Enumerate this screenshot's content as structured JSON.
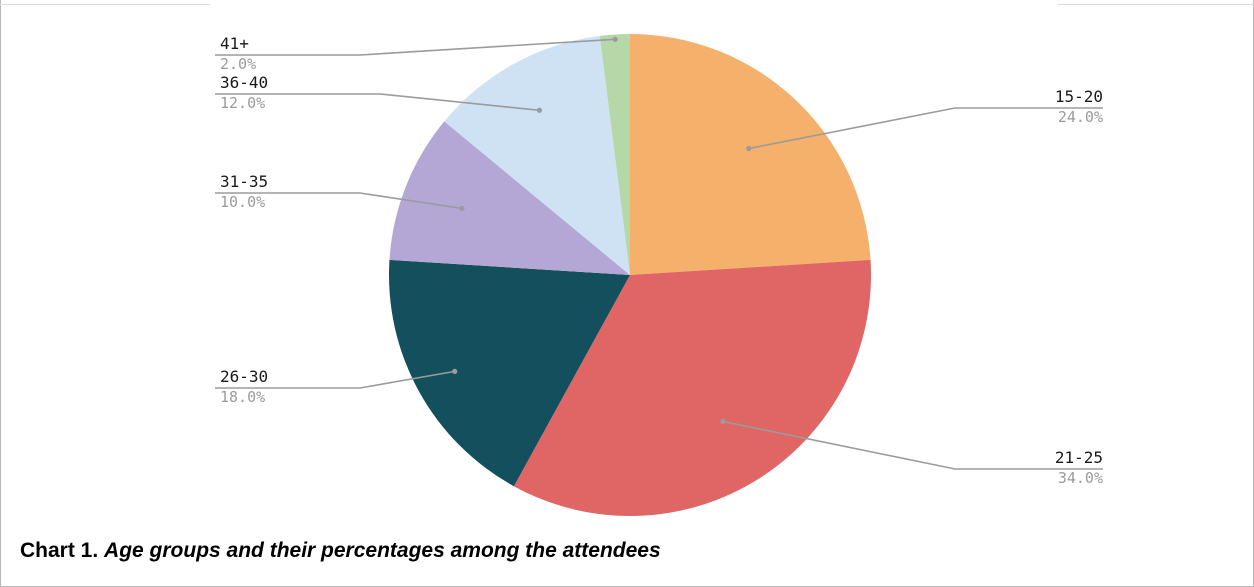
{
  "chart_data": {
    "type": "pie",
    "categories": [
      "15-20",
      "21-25",
      "26-30",
      "31-35",
      "36-40",
      "41+"
    ],
    "values": [
      24.0,
      34.0,
      18.0,
      10.0,
      12.0,
      2.0
    ],
    "value_labels": [
      "24.0%",
      "34.0%",
      "18.0%",
      "10.0%",
      "12.0%",
      "2.0%"
    ],
    "colors": [
      "#f5b06b",
      "#e06666",
      "#134f5c",
      "#b4a7d6",
      "#cfe2f3",
      "#b6d7a8"
    ],
    "start": "12 o'clock",
    "direction": "clockwise",
    "legend": "none"
  },
  "caption": {
    "number": "Chart 1.",
    "text": "Age groups and their percentages among the attendees"
  }
}
